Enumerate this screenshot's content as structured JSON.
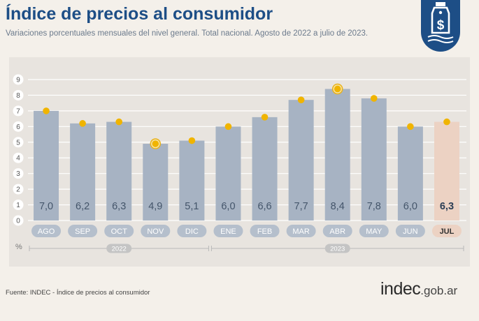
{
  "header": {
    "title": "Índice de precios al consumidor",
    "subtitle": "Variaciones porcentuales mensuales del nivel general. Total nacional. Agosto de 2022 a julio de 2023."
  },
  "badge": {
    "icon": "price-tag-dollar-icon",
    "color": "#1d4e86"
  },
  "footer": {
    "source": "Fuente: INDEC - Índice de precios al consumidor",
    "logo_main": "indec",
    "logo_suffix": ".gob.ar"
  },
  "colors": {
    "bar": "#a7b3c3",
    "bar_highlight": "#ecd2c3",
    "dot": "#f0b400",
    "title": "#1d4e86"
  },
  "chart_data": {
    "type": "bar",
    "title": "Índice de precios al consumidor",
    "ylabel": "%",
    "ylim": [
      0,
      9
    ],
    "yticks": [
      0,
      1,
      2,
      3,
      4,
      5,
      6,
      7,
      8,
      9
    ],
    "grid": true,
    "categories": [
      "AGO",
      "SEP",
      "OCT",
      "NOV",
      "DIC",
      "ENE",
      "FEB",
      "MAR",
      "ABR",
      "MAY",
      "JUN",
      "JUL"
    ],
    "values": [
      7.0,
      6.2,
      6.3,
      4.9,
      5.1,
      6.0,
      6.6,
      7.7,
      8.4,
      7.8,
      6.0,
      6.3
    ],
    "value_labels": [
      "7,0",
      "6,2",
      "6,3",
      "4,9",
      "5,1",
      "6,0",
      "6,6",
      "7,7",
      "8,4",
      "7,8",
      "6,0",
      "6,3"
    ],
    "highlight_index": 11,
    "ringed_indices": [
      3,
      8
    ],
    "year_groups": [
      {
        "label": "2022",
        "from": 0,
        "to": 4
      },
      {
        "label": "2023",
        "from": 5,
        "to": 11
      }
    ]
  }
}
